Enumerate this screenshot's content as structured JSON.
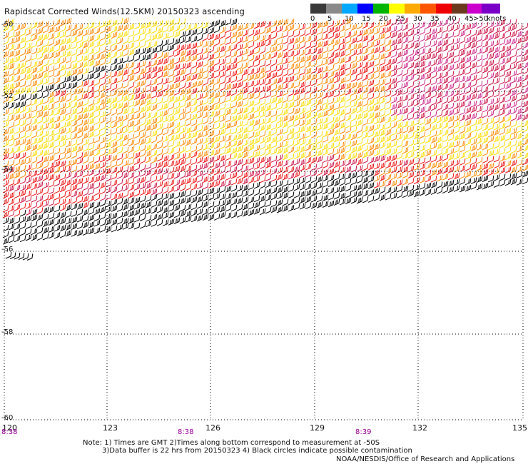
{
  "header": {
    "title": "Rapidscat Corrected Winds(12.5KM) 20150323 ascending"
  },
  "color_scale": {
    "swatches": [
      "#3a3a3a",
      "#8a8a8a",
      "#00a8ff",
      "#0000ff",
      "#00b400",
      "#ffff00",
      "#ffaa00",
      "#ff5500",
      "#ee0000",
      "#6b3a1e",
      "#cc00cc",
      "#7a00c8"
    ],
    "ticks": [
      "0",
      "5",
      "10",
      "15",
      "20",
      "25",
      "30",
      "35",
      "40",
      "45",
      ">50"
    ],
    "units": "knots"
  },
  "map": {
    "lat_labels": [
      "-50",
      "-52",
      "-54",
      "-56",
      "-58",
      "-60"
    ],
    "lon_labels": [
      "120",
      "123",
      "126",
      "129",
      "132",
      "135"
    ],
    "time_labels": [
      "8:38",
      "8:38",
      "8:39"
    ],
    "time_color": "#990099",
    "barb_colors": {
      "black": "#000000",
      "yellow": "#ffdd00",
      "orange": "#ff8800",
      "red": "#ee1111",
      "crimson": "#cc1144",
      "magenta": "#cc2288"
    }
  },
  "footer": {
    "note_1": "Note: 1) Times are GMT 2)Times along bottom correspond to measurement at -50S",
    "note_2": "3)Data buffer is 22 hrs from 20150323 4) Black circles indicate possible contamination",
    "credit": "NOAA/NESDIS/Office of Research and Applications"
  }
}
